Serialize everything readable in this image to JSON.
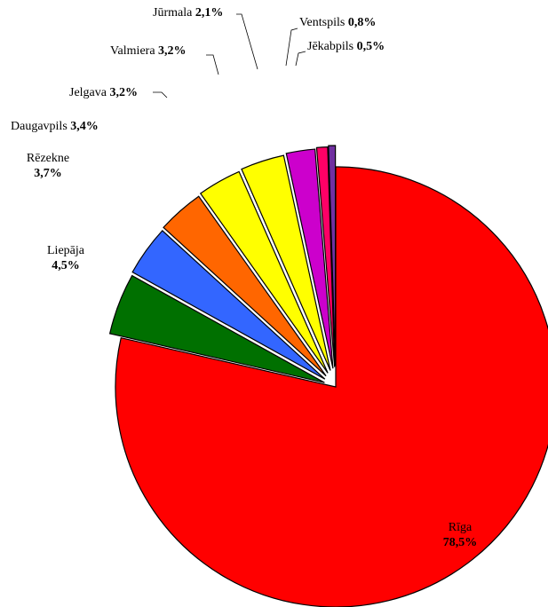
{
  "chart_data": {
    "type": "pie",
    "title": "",
    "legend": "none",
    "exploded": true,
    "slices": [
      {
        "label": "Rīga",
        "value": 78.5,
        "value_label": "78,5%",
        "color": "#FF0000"
      },
      {
        "label": "Liepāja",
        "value": 4.5,
        "value_label": "4,5%",
        "color": "#007000"
      },
      {
        "label": "Rēzekne",
        "value": 3.7,
        "value_label": "3,7%",
        "color": "#3366FF"
      },
      {
        "label": "Daugavpils",
        "value": 3.4,
        "value_label": "3,4%",
        "color": "#FF6600"
      },
      {
        "label": "Jelgava",
        "value": 3.2,
        "value_label": "3,2%",
        "color": "#FFFF00"
      },
      {
        "label": "Valmiera",
        "value": 3.2,
        "value_label": "3,2%",
        "color": "#FFFF00"
      },
      {
        "label": "Jūrmala",
        "value": 2.1,
        "value_label": "2,1%",
        "color": "#CC00CC"
      },
      {
        "label": "Ventspils",
        "value": 0.8,
        "value_label": "0,8%",
        "color": "#FF0066"
      },
      {
        "label": "Jēkabpils",
        "value": 0.5,
        "value_label": "0,5%",
        "color": "#7030A0"
      }
    ]
  }
}
